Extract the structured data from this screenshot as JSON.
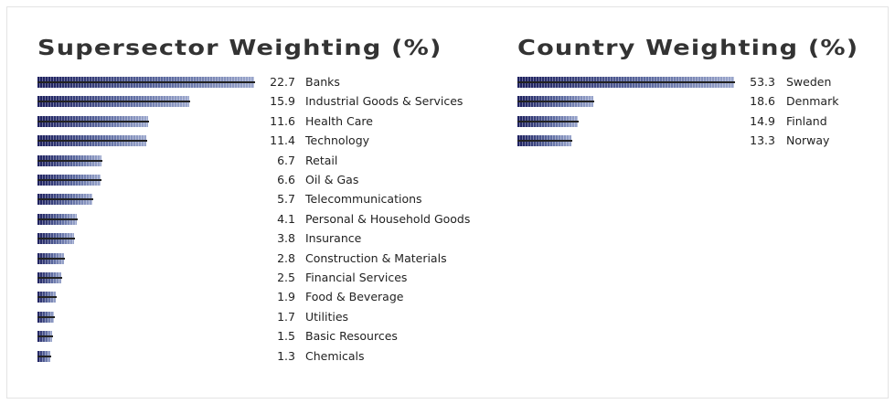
{
  "chart_data": [
    {
      "type": "bar",
      "orientation": "horizontal",
      "title": "Supersector Weighting (%)",
      "categories": [
        "Banks",
        "Industrial Goods & Services",
        "Health Care",
        "Technology",
        "Retail",
        "Oil & Gas",
        "Telecommunications",
        "Personal & Household Goods",
        "Insurance",
        "Construction & Materials",
        "Financial Services",
        "Food & Beverage",
        "Utilities",
        "Basic Resources",
        "Chemicals"
      ],
      "values": [
        22.7,
        15.9,
        11.6,
        11.4,
        6.7,
        6.6,
        5.7,
        4.1,
        3.8,
        2.8,
        2.5,
        1.9,
        1.7,
        1.5,
        1.3
      ],
      "labels": [
        "22.7",
        "15.9",
        "11.6",
        "11.4",
        "6.7",
        "6.6",
        "5.7",
        "4.1",
        "3.8",
        "2.8",
        "2.5",
        "1.9",
        "1.7",
        "1.5",
        "1.3"
      ]
    },
    {
      "type": "bar",
      "orientation": "horizontal",
      "title": "Country Weighting (%)",
      "categories": [
        "Sweden",
        "Denmark",
        "Finland",
        "Norway"
      ],
      "values": [
        53.3,
        18.6,
        14.9,
        13.3
      ],
      "labels": [
        "53.3",
        "18.6",
        "14.9",
        "13.3"
      ]
    }
  ]
}
